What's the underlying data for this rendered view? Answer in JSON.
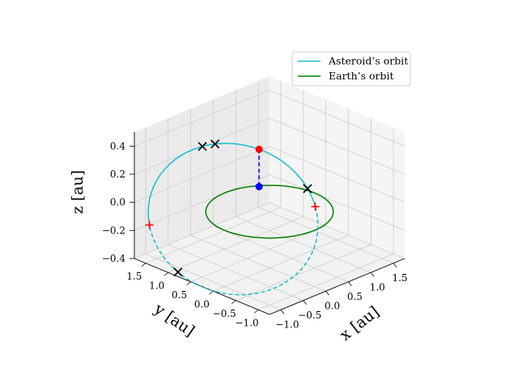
{
  "chart_data": {
    "type": "line",
    "projection": "3d",
    "title": "",
    "xlabel": "x [au]",
    "ylabel": "y [au]",
    "zlabel": "z [au]",
    "xlim": [
      -1.25,
      1.75
    ],
    "ylim": [
      -1.25,
      1.75
    ],
    "zlim": [
      -0.4,
      0.5
    ],
    "xticks": [
      "−1.0",
      "−0.5",
      "0.0",
      "0.5",
      "1.0",
      "1.5"
    ],
    "yticks": [
      "−1.0",
      "−0.5",
      "0.0",
      "0.5",
      "1.0",
      "1.5"
    ],
    "zticks": [
      "−0.4",
      "−0.2",
      "0.0",
      "0.2",
      "0.4"
    ],
    "grid": true,
    "legend_position": "top-right",
    "series": [
      {
        "name": "Asteroid’s orbit",
        "color": "#17becf",
        "kind": "ellipse",
        "a": 1.35,
        "e": 0.45,
        "inclination_deg": 15.5,
        "ascending_node_deg": 330,
        "argument_perihelion_deg": 5,
        "dashed_segment": "below ecliptic, from the descending node to the ascending node"
      },
      {
        "name": "Earth’s orbit",
        "color": "#008000",
        "kind": "circle",
        "radius": 1.0,
        "z": 0.0
      }
    ],
    "node_markers": [
      {
        "symbol": "+",
        "color": "#ff0000",
        "position": "ascending-node"
      },
      {
        "symbol": "+",
        "color": "#ff0000",
        "position": "descending-node"
      }
    ],
    "cross_markers": [
      {
        "symbol": "x",
        "color": "#000000",
        "orbit_anomaly_deg": 200
      },
      {
        "symbol": "x",
        "color": "#000000",
        "orbit_anomaly_deg": 120
      },
      {
        "symbol": "x",
        "color": "#000000",
        "orbit_anomaly_deg": 112
      },
      {
        "symbol": "x",
        "color": "#000000",
        "orbit_anomaly_deg": 18
      }
    ],
    "asteroid_point": {
      "color": "#ff0000",
      "orbit_anomaly_deg": 80
    },
    "projection_point": {
      "color": "#0000ff",
      "description": "projection of the asteroid onto the ecliptic plane (z = 0)"
    },
    "projection_line": {
      "color": "#0000ff",
      "style": "dashed"
    }
  }
}
